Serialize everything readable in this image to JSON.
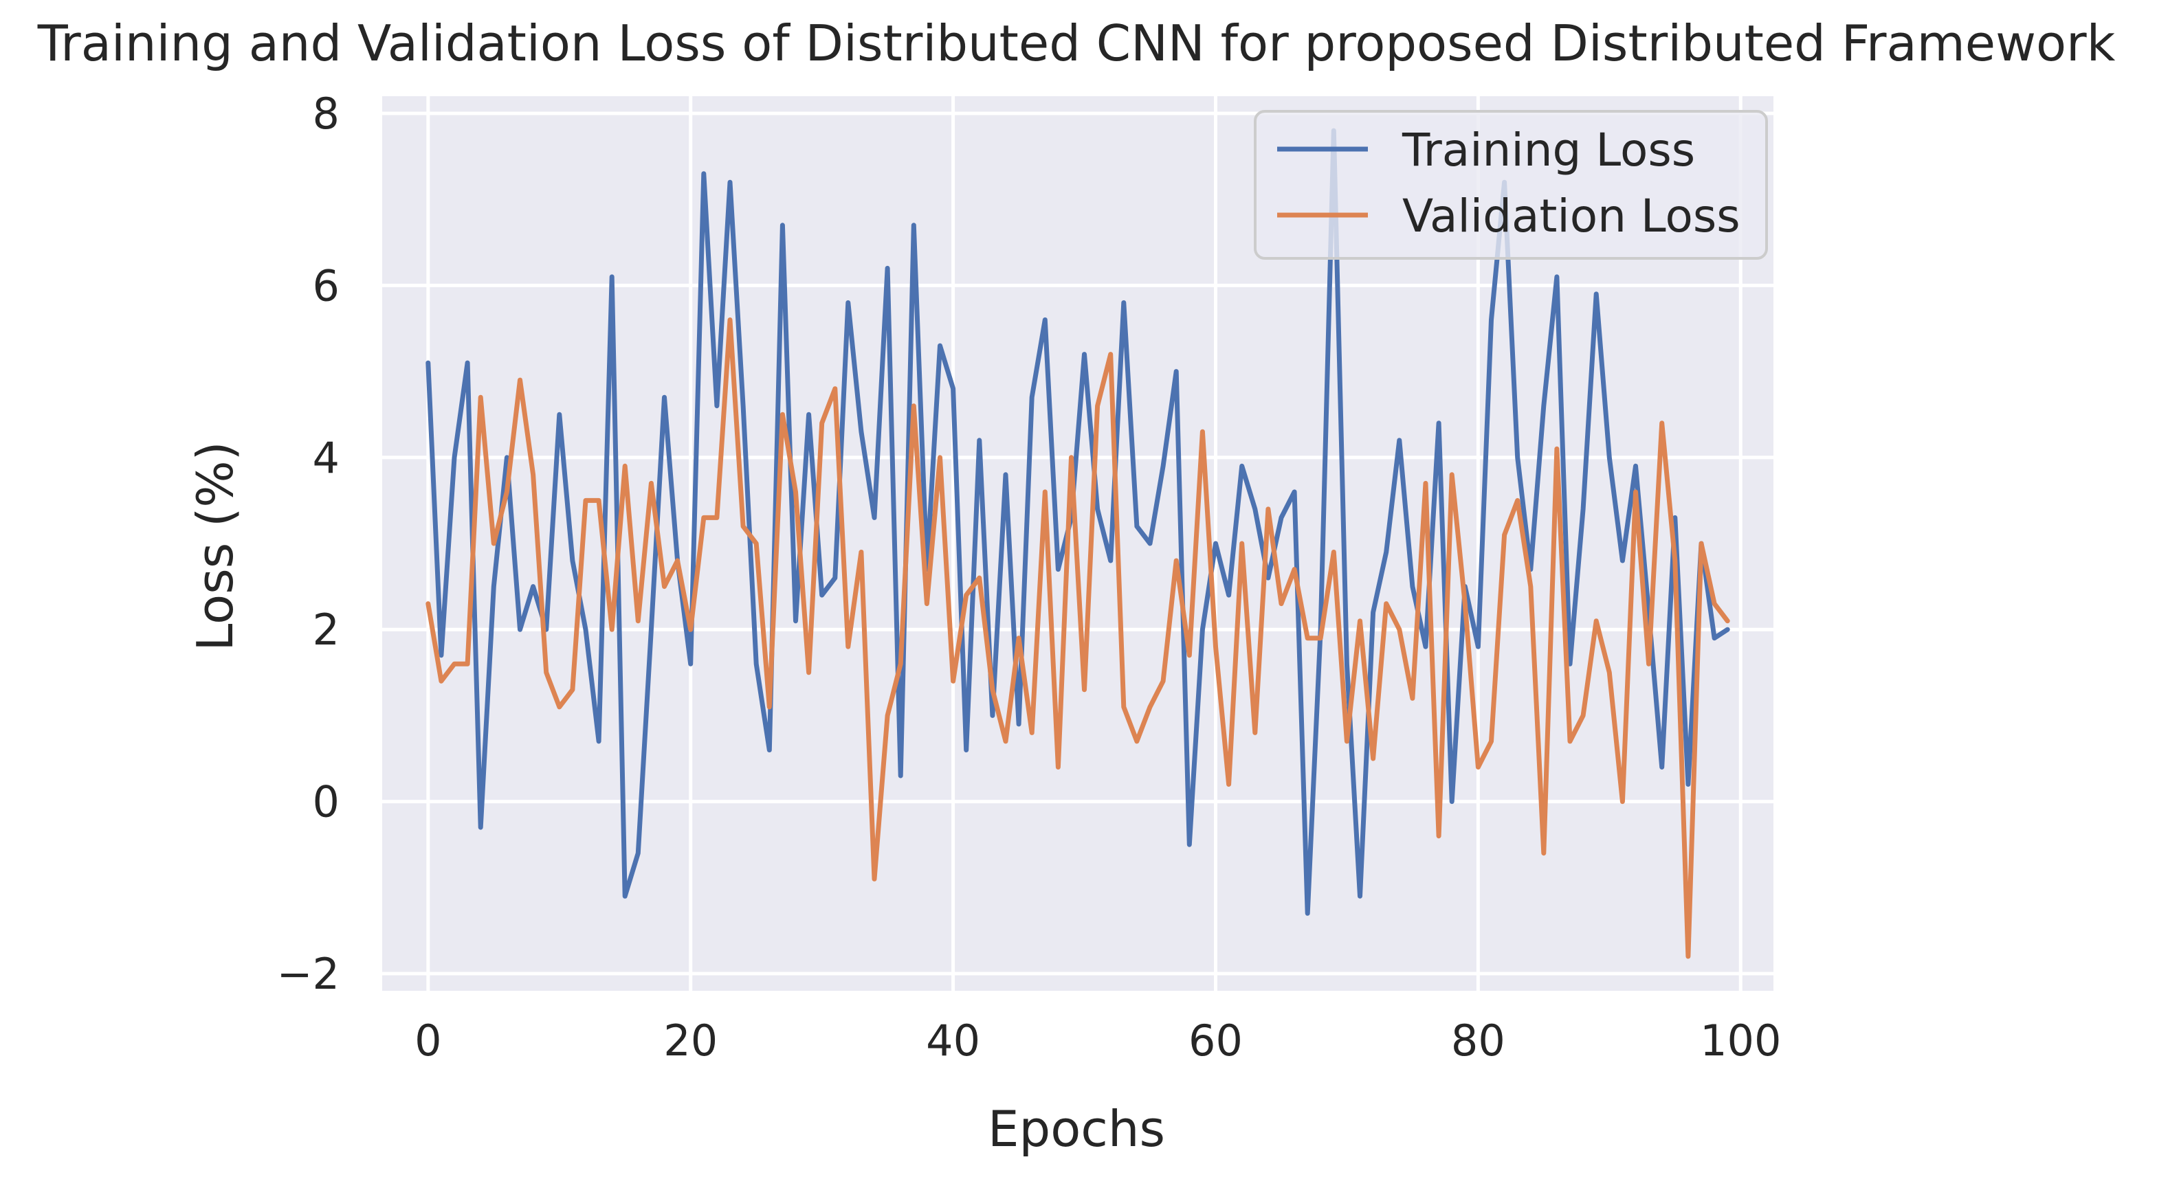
{
  "chart_data": {
    "type": "line",
    "title": "Training and Validation Loss of Distributed CNN for proposed Distributed Framework",
    "xlabel": "Epochs",
    "ylabel": "Loss (%)",
    "xlim": [
      -3.5,
      102.5
    ],
    "ylim": [
      -2.2,
      8.2
    ],
    "xticks": [
      0,
      20,
      40,
      60,
      80,
      100
    ],
    "yticks": [
      -2,
      0,
      2,
      4,
      6,
      8
    ],
    "xtick_labels": [
      "0",
      "20",
      "40",
      "60",
      "80",
      "100"
    ],
    "ytick_labels": [
      "−2",
      "0",
      "2",
      "4",
      "6",
      "8"
    ],
    "grid": true,
    "legend_position": "top-right",
    "x": [
      0,
      1,
      2,
      3,
      4,
      5,
      6,
      7,
      8,
      9,
      10,
      11,
      12,
      13,
      14,
      15,
      16,
      17,
      18,
      19,
      20,
      21,
      22,
      23,
      24,
      25,
      26,
      27,
      28,
      29,
      30,
      31,
      32,
      33,
      34,
      35,
      36,
      37,
      38,
      39,
      40,
      41,
      42,
      43,
      44,
      45,
      46,
      47,
      48,
      49,
      50,
      51,
      52,
      53,
      54,
      55,
      56,
      57,
      58,
      59,
      60,
      61,
      62,
      63,
      64,
      65,
      66,
      67,
      68,
      69,
      70,
      71,
      72,
      73,
      74,
      75,
      76,
      77,
      78,
      79,
      80,
      81,
      82,
      83,
      84,
      85,
      86,
      87,
      88,
      89,
      90,
      91,
      92,
      93,
      94,
      95,
      96,
      97,
      98,
      99
    ],
    "series": [
      {
        "name": "Training Loss",
        "color": "#4c72b0",
        "values": [
          5.1,
          1.7,
          4.0,
          5.1,
          -0.3,
          2.5,
          4.0,
          2.0,
          2.5,
          2.0,
          4.5,
          2.8,
          2.0,
          0.7,
          6.1,
          -1.1,
          -0.6,
          2.0,
          4.7,
          2.8,
          1.6,
          7.3,
          4.6,
          7.2,
          4.6,
          1.6,
          0.6,
          6.7,
          2.1,
          4.5,
          2.4,
          2.6,
          5.8,
          4.3,
          3.3,
          6.2,
          0.3,
          6.7,
          2.7,
          5.3,
          4.8,
          0.6,
          4.2,
          1.0,
          3.8,
          0.9,
          4.7,
          5.6,
          2.7,
          3.3,
          5.2,
          3.4,
          2.8,
          5.8,
          3.2,
          3.0,
          3.9,
          5.0,
          -0.5,
          2.0,
          3.0,
          2.4,
          3.9,
          3.4,
          2.6,
          3.3,
          3.6,
          -1.3,
          2.0,
          7.8,
          1.6,
          -1.1,
          2.2,
          2.9,
          4.2,
          2.5,
          1.8,
          4.4,
          0.0,
          2.5,
          1.8,
          5.6,
          7.2,
          4.0,
          2.7,
          4.6,
          6.1,
          1.6,
          3.4,
          5.9,
          4.0,
          2.8,
          3.9,
          2.2,
          0.4,
          3.3,
          0.2,
          3.0,
          1.9,
          2.0
        ]
      },
      {
        "name": "Validation Loss",
        "color": "#dd8452",
        "values": [
          2.3,
          1.4,
          1.6,
          1.6,
          4.7,
          3.0,
          3.6,
          4.9,
          3.8,
          1.5,
          1.1,
          1.3,
          3.5,
          3.5,
          2.0,
          3.9,
          2.1,
          3.7,
          2.5,
          2.8,
          2.0,
          3.3,
          3.3,
          5.6,
          3.2,
          3.0,
          1.1,
          4.5,
          3.6,
          1.5,
          4.4,
          4.8,
          1.8,
          2.9,
          -0.9,
          1.0,
          1.6,
          4.6,
          2.3,
          4.0,
          1.4,
          2.4,
          2.6,
          1.3,
          0.7,
          1.9,
          0.8,
          3.6,
          0.4,
          4.0,
          1.3,
          4.6,
          5.2,
          1.1,
          0.7,
          1.1,
          1.4,
          2.8,
          1.7,
          4.3,
          1.8,
          0.2,
          3.0,
          0.8,
          3.4,
          2.3,
          2.7,
          1.9,
          1.9,
          2.9,
          0.7,
          2.1,
          0.5,
          2.3,
          2.0,
          1.2,
          3.7,
          -0.4,
          3.8,
          2.3,
          0.4,
          0.7,
          3.1,
          3.5,
          2.5,
          -0.6,
          4.1,
          0.7,
          1.0,
          2.1,
          1.5,
          0.0,
          3.6,
          1.6,
          4.4,
          2.8,
          -1.8,
          3.0,
          2.3,
          2.1
        ]
      }
    ]
  },
  "colors": {
    "plot_background": "#eaeaf2",
    "grid": "#ffffff",
    "text": "#262626",
    "legend_border": "#cccccc"
  }
}
